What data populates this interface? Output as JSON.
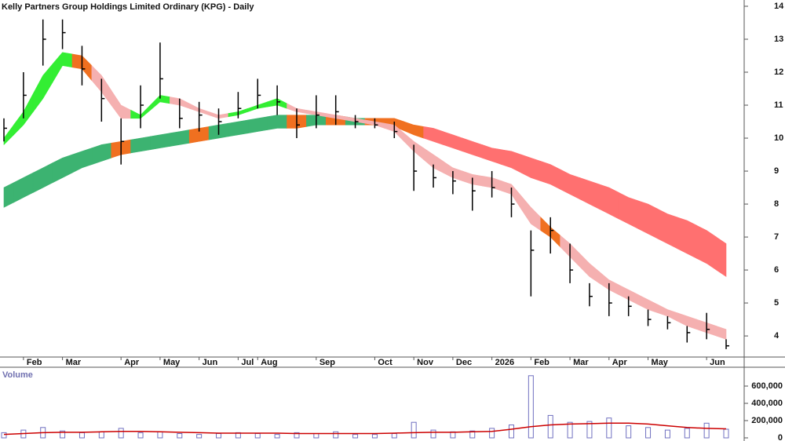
{
  "chart_data": [
    {
      "type": "hlc",
      "title": "Kelly Partners Group Holdings Limited Ordinary (KPG) - Daily",
      "x": [
        null,
        "Feb",
        null,
        "Mar",
        null,
        null,
        "Apr",
        null,
        "May",
        null,
        "Jun",
        null,
        "Jul",
        "Aug",
        null,
        null,
        "Sep",
        null,
        null,
        "Oct",
        null,
        "Nov",
        null,
        "Dec",
        null,
        "2026",
        null,
        "Feb",
        null,
        "Mar",
        null,
        "Apr",
        null,
        "May",
        null,
        null,
        "Jun",
        null
      ],
      "high": [
        10.6,
        12.0,
        13.6,
        13.6,
        12.8,
        11.8,
        10.6,
        11.6,
        12.9,
        11.2,
        11.1,
        10.9,
        11.4,
        11.8,
        11.6,
        10.9,
        11.3,
        11.3,
        10.7,
        10.6,
        10.5,
        9.8,
        9.2,
        9.0,
        8.8,
        9.0,
        8.5,
        7.2,
        7.6,
        6.8,
        5.6,
        5.6,
        5.2,
        4.8,
        4.6,
        4.3,
        4.7,
        3.9
      ],
      "low": [
        9.9,
        10.6,
        12.2,
        12.7,
        11.6,
        10.5,
        9.2,
        10.3,
        11.2,
        10.3,
        10.2,
        10.1,
        10.6,
        10.9,
        10.7,
        10.0,
        10.3,
        10.4,
        10.3,
        10.3,
        10.0,
        8.4,
        8.5,
        8.3,
        7.8,
        8.2,
        7.6,
        5.2,
        6.5,
        5.6,
        4.9,
        4.6,
        4.6,
        4.3,
        4.2,
        3.8,
        3.9,
        3.6
      ],
      "close": [
        10.3,
        11.3,
        13.0,
        13.2,
        12.1,
        11.2,
        9.9,
        11.0,
        11.8,
        10.6,
        10.7,
        10.5,
        10.9,
        11.3,
        11.1,
        10.4,
        10.7,
        10.8,
        10.5,
        10.4,
        10.2,
        9.0,
        8.8,
        8.7,
        8.4,
        8.5,
        8.0,
        6.6,
        7.2,
        6.0,
        5.2,
        5.0,
        4.9,
        4.5,
        4.4,
        4.1,
        4.2,
        3.7
      ],
      "color": "#000000",
      "bands": [
        {
          "upper": [
            8.5,
            8.8,
            9.1,
            9.4,
            9.6,
            9.8,
            9.9,
            10.0,
            10.1,
            10.2,
            10.3,
            10.4,
            10.5,
            10.6,
            10.7,
            10.7,
            10.7,
            10.7,
            10.6,
            10.6,
            10.6,
            10.4,
            10.3,
            10.1,
            9.9,
            9.7,
            9.6,
            9.4,
            9.2,
            8.9,
            8.7,
            8.5,
            8.2,
            8.0,
            7.7,
            7.5,
            7.2,
            6.8
          ],
          "lower": [
            7.9,
            8.2,
            8.5,
            8.8,
            9.1,
            9.3,
            9.5,
            9.6,
            9.7,
            9.8,
            9.9,
            10.0,
            10.1,
            10.2,
            10.3,
            10.3,
            10.4,
            10.4,
            10.4,
            10.4,
            10.35,
            10.1,
            9.9,
            9.7,
            9.5,
            9.3,
            9.1,
            8.8,
            8.6,
            8.3,
            8.0,
            7.7,
            7.4,
            7.1,
            6.8,
            6.5,
            6.2,
            5.8
          ],
          "colors": [
            "#3cb371",
            "#3cb371",
            "#3cb371",
            "#3cb371",
            "#3cb371",
            "#3cb371",
            "#f07020",
            "#3cb371",
            "#3cb371",
            "#3cb371",
            "#f07020",
            "#3cb371",
            "#3cb371",
            "#3cb371",
            "#3cb371",
            "#f07020",
            "#3cb371",
            "#f07020",
            "#3cb371",
            "#f07020",
            "#f07020",
            "#f07020",
            "#ff7070",
            "#ff7070",
            "#ff7070",
            "#ff7070",
            "#ff7070",
            "#ff7070",
            "#ff7070",
            "#ff7070",
            "#ff7070",
            "#ff7070",
            "#ff7070",
            "#ff7070",
            "#ff7070",
            "#ff7070",
            "#ff7070",
            "#ff7070"
          ]
        },
        {
          "upper": [
            10.0,
            10.8,
            11.9,
            12.6,
            12.5,
            11.9,
            11.0,
            10.7,
            11.3,
            11.2,
            10.9,
            10.7,
            10.8,
            11.0,
            11.2,
            10.9,
            10.8,
            10.7,
            10.6,
            10.5,
            10.4,
            9.9,
            9.5,
            9.1,
            8.9,
            8.8,
            8.6,
            7.9,
            7.3,
            6.8,
            6.2,
            5.7,
            5.4,
            5.1,
            4.8,
            4.6,
            4.4,
            4.2
          ],
          "lower": [
            9.8,
            10.4,
            11.2,
            12.2,
            12.1,
            11.4,
            10.6,
            10.6,
            11.1,
            11.0,
            10.8,
            10.6,
            10.7,
            10.9,
            11.0,
            10.8,
            10.7,
            10.6,
            10.5,
            10.4,
            10.2,
            9.6,
            9.1,
            8.8,
            8.6,
            8.5,
            8.3,
            7.4,
            7.0,
            6.4,
            5.8,
            5.4,
            5.1,
            4.8,
            4.6,
            4.3,
            4.1,
            3.9
          ],
          "colors": [
            "#33ee33",
            "#33ee33",
            "#33ee33",
            "#33ee33",
            "#f07020",
            "#f5b0b0",
            "#f5b0b0",
            "#33ee33",
            "#33ee33",
            "#f5b0b0",
            "#f5b0b0",
            "#f5b0b0",
            "#33ee33",
            "#33ee33",
            "#33ee33",
            "#f5b0b0",
            "#f5b0b0",
            "#f5b0b0",
            "#f5b0b0",
            "#f5b0b0",
            "#f5b0b0",
            "#f5b0b0",
            "#f5b0b0",
            "#f5b0b0",
            "#f5b0b0",
            "#f5b0b0",
            "#f5b0b0",
            "#f5b0b0",
            "#f07020",
            "#f5b0b0",
            "#f5b0b0",
            "#f5b0b0",
            "#f5b0b0",
            "#f5b0b0",
            "#f5b0b0",
            "#f5b0b0",
            "#f5b0b0",
            "#f5b0b0"
          ]
        }
      ],
      "ylim": [
        3.36,
        14.19
      ],
      "yticks": [
        4,
        5,
        6,
        7,
        8,
        9,
        10,
        11,
        12,
        13,
        14
      ]
    },
    {
      "type": "bar",
      "title": "Volume",
      "values": [
        60000,
        90000,
        120000,
        80000,
        60000,
        70000,
        110000,
        60000,
        70000,
        50000,
        40000,
        50000,
        60000,
        50000,
        40000,
        60000,
        50000,
        70000,
        40000,
        40000,
        50000,
        180000,
        90000,
        70000,
        80000,
        110000,
        150000,
        720000,
        260000,
        180000,
        190000,
        230000,
        140000,
        120000,
        90000,
        110000,
        170000,
        100000
      ],
      "average": [
        40000,
        50000,
        60000,
        65000,
        65000,
        70000,
        75000,
        75000,
        70000,
        65000,
        60000,
        55000,
        55000,
        55000,
        55000,
        50000,
        50000,
        50000,
        50000,
        50000,
        55000,
        60000,
        65000,
        65000,
        70000,
        75000,
        100000,
        130000,
        150000,
        160000,
        165000,
        170000,
        170000,
        160000,
        140000,
        120000,
        110000,
        105000
      ],
      "color": "#7070c0",
      "average_color": "#cc0000",
      "ylim": [
        0,
        800000
      ],
      "yticks": [
        0,
        {
          "value": 200000,
          "label": "200,000"
        },
        {
          "value": 400000,
          "label": "400,000"
        },
        {
          "value": 600000,
          "label": "600,000"
        }
      ]
    }
  ]
}
